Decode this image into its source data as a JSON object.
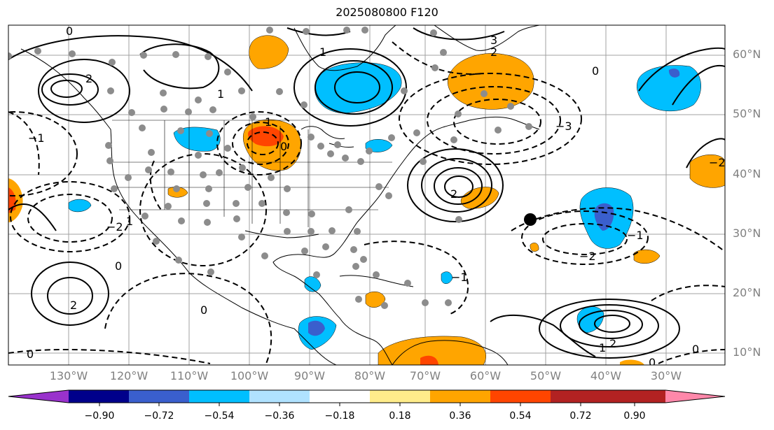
{
  "title": "2025080800 F120",
  "latitude_labels": [
    "60°N",
    "50°N",
    "40°N",
    "30°N",
    "20°N",
    "10°N"
  ],
  "longitude_labels": [
    "130°W",
    "120°W",
    "110°W",
    "100°W",
    "90°W",
    "80°W",
    "70°W",
    "60°W",
    "50°W",
    "40°W",
    "30°W"
  ],
  "colorbar": {
    "colors": [
      "#9932cc",
      "#00008b",
      "#3a5fcd",
      "#00bfff",
      "#b0e2ff",
      "#ffffff",
      "#ffec8b",
      "#ffa500",
      "#ff4500",
      "#b22222",
      "#ff88aa"
    ],
    "tick_labels": [
      "−0.90",
      "−0.72",
      "−0.54",
      "−0.36",
      "−0.18",
      "0.18",
      "0.36",
      "0.54",
      "0.72",
      "0.90"
    ]
  },
  "contour_labels": [
    "0",
    "2",
    "−1",
    "1",
    "−2",
    "3",
    "−3",
    "2",
    "1",
    "0",
    "2",
    "−1",
    "1",
    "2",
    "−2",
    "0",
    "0",
    "−2",
    "1",
    "0",
    "2",
    "1",
    "0",
    "0",
    "−1",
    "0"
  ],
  "background_color": "#ffffff",
  "map_line_color": "#000000",
  "gridline_color": "#a0a0a0",
  "station_marker_color": "#8c8c8c"
}
